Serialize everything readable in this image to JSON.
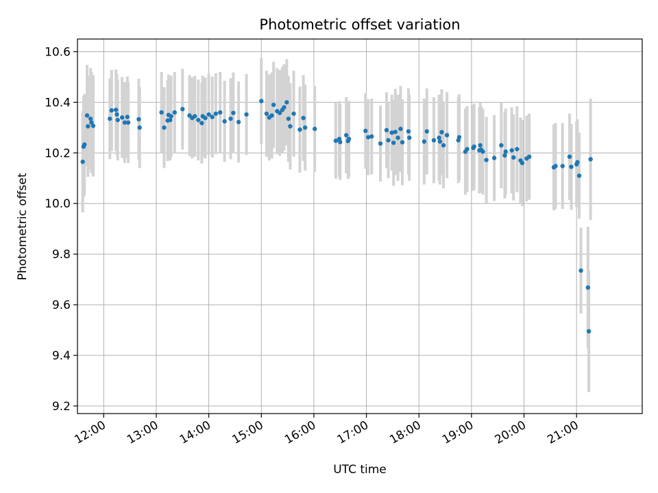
{
  "chart_data": {
    "type": "scatter",
    "title": "Photometric offset variation",
    "xlabel": "UTC time",
    "ylabel": "Photometric offset",
    "xlim": [
      "11:30",
      "22:15"
    ],
    "ylim": [
      9.17,
      10.65
    ],
    "x_ticks": [
      "12:00",
      "13:00",
      "14:00",
      "15:00",
      "16:00",
      "17:00",
      "18:00",
      "19:00",
      "20:00",
      "21:00"
    ],
    "y_ticks": [
      9.2,
      9.4,
      9.6,
      9.8,
      10.0,
      10.2,
      10.4,
      10.6
    ],
    "grid": true,
    "colors": {
      "point": "#1f77b4",
      "errorbar": "#d3d3d3",
      "grid": "#b0b0b0"
    },
    "series": [
      {
        "x": [
          "11:36",
          "11:37",
          "11:38",
          "11:41",
          "11:42",
          "11:45",
          "11:46",
          "11:48",
          "12:07",
          "12:09",
          "12:14",
          "12:15",
          "12:16",
          "12:21",
          "12:24",
          "12:27",
          "12:28",
          "12:40",
          "12:41",
          "13:06",
          "13:09",
          "13:13",
          "13:14",
          "13:16",
          "13:17",
          "13:21",
          "13:30",
          "13:38",
          "13:41",
          "13:44",
          "13:48",
          "13:52",
          "13:53",
          "13:56",
          "14:00",
          "14:04",
          "14:08",
          "14:13",
          "14:18",
          "14:25",
          "14:28",
          "14:34",
          "14:43",
          "15:00",
          "15:06",
          "15:09",
          "15:12",
          "15:14",
          "15:18",
          "15:21",
          "15:24",
          "15:26",
          "15:29",
          "15:31",
          "15:33",
          "15:37",
          "15:44",
          "15:48",
          "15:50",
          "16:01",
          "16:25",
          "16:29",
          "16:30",
          "16:37",
          "16:39",
          "16:40",
          "16:59",
          "17:02",
          "17:06",
          "17:16",
          "17:23",
          "17:25",
          "17:29",
          "17:31",
          "17:33",
          "17:36",
          "17:39",
          "17:41",
          "17:48",
          "17:49",
          "18:06",
          "18:09",
          "18:17",
          "18:23",
          "18:24",
          "18:26",
          "18:28",
          "18:32",
          "18:45",
          "18:46",
          "18:53",
          "18:55",
          "19:02",
          "19:03",
          "19:09",
          "19:10",
          "19:11",
          "19:13",
          "19:17",
          "19:26",
          "19:34",
          "19:38",
          "19:39",
          "19:46",
          "19:48",
          "19:52",
          "19:56",
          "19:58",
          "20:03",
          "20:06",
          "20:34",
          "20:36",
          "20:44",
          "20:52",
          "20:54",
          "21:00",
          "21:01",
          "21:03",
          "21:05",
          "21:13",
          "21:14",
          "21:16"
        ],
        "y": [
          10.165,
          10.225,
          10.233,
          10.348,
          10.305,
          10.335,
          10.32,
          10.307,
          10.335,
          10.368,
          10.37,
          10.352,
          10.33,
          10.34,
          10.32,
          10.342,
          10.32,
          10.333,
          10.3,
          10.36,
          10.3,
          10.328,
          10.35,
          10.33,
          10.345,
          10.36,
          10.373,
          10.348,
          10.338,
          10.345,
          10.33,
          10.318,
          10.345,
          10.338,
          10.352,
          10.342,
          10.355,
          10.36,
          10.325,
          10.335,
          10.358,
          10.322,
          10.352,
          10.405,
          10.355,
          10.34,
          10.348,
          10.39,
          10.365,
          10.358,
          10.37,
          10.38,
          10.4,
          10.335,
          10.305,
          10.355,
          10.292,
          10.338,
          10.3,
          10.295,
          10.248,
          10.255,
          10.243,
          10.27,
          10.247,
          10.255,
          10.287,
          10.262,
          10.265,
          10.237,
          10.29,
          10.25,
          10.28,
          10.24,
          10.283,
          10.26,
          10.295,
          10.242,
          10.285,
          10.26,
          10.245,
          10.285,
          10.25,
          10.26,
          10.245,
          10.282,
          10.23,
          10.27,
          10.25,
          10.262,
          10.205,
          10.215,
          10.22,
          10.225,
          10.21,
          10.23,
          10.213,
          10.205,
          10.172,
          10.18,
          10.23,
          10.19,
          10.205,
          10.21,
          10.182,
          10.215,
          10.17,
          10.16,
          10.178,
          10.185,
          10.143,
          10.148,
          10.148,
          10.185,
          10.145,
          10.155,
          10.163,
          10.11,
          9.735,
          9.668,
          9.495,
          10.175
        ]
      }
    ]
  }
}
